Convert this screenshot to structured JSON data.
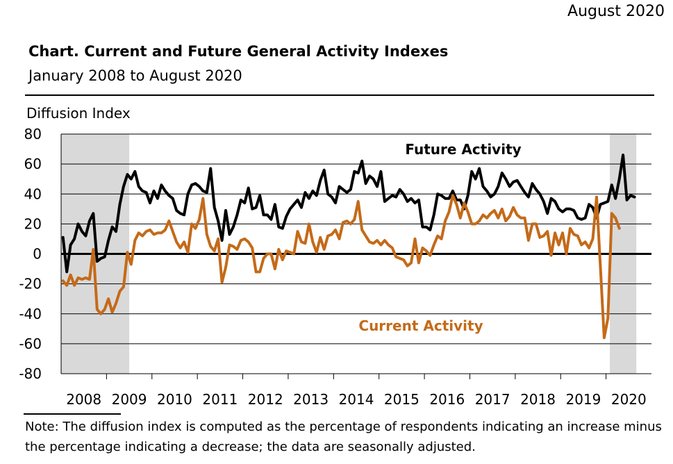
{
  "header": {
    "date": "August 2020",
    "title": "Chart. Current and Future General Activity Indexes",
    "subtitle": "January 2008 to August 2020"
  },
  "footer": {
    "note": "Note: The diffusion index is computed as the percentage of respondents indicating an increase minus the percentage indicating a decrease; the data are seasonally adjusted."
  },
  "chart_data": {
    "type": "line",
    "title": "Chart. Current and Future General Activity Indexes",
    "subtitle": "January 2008 to August 2020",
    "ylabel": "Diffusion Index",
    "ylim": [
      -80,
      80
    ],
    "yticks": [
      80,
      60,
      40,
      20,
      0,
      -20,
      -40,
      -60,
      -80
    ],
    "year_labels": [
      "2008",
      "2009",
      "2010",
      "2011",
      "2012",
      "2013",
      "2014",
      "2015",
      "2016",
      "2017",
      "2018",
      "2019",
      "2020"
    ],
    "x_start": "2008-01",
    "grid": true,
    "shaded_periods": [
      {
        "start": "2008-01",
        "end": "2009-06"
      },
      {
        "start": "2020-02",
        "end": "2020-08"
      }
    ],
    "series": [
      {
        "name": "Future Activity",
        "color": "#000000",
        "label_text": "Future Activity",
        "values": [
          11,
          -12,
          6,
          10,
          20,
          15,
          12,
          22,
          27,
          -5,
          -3,
          -2,
          9,
          18,
          15,
          33,
          45,
          53,
          50,
          55,
          45,
          42,
          41,
          34,
          42,
          37,
          46,
          42,
          39,
          37,
          29,
          27,
          26,
          40,
          46,
          47,
          45,
          42,
          41,
          57,
          31,
          22,
          9,
          29,
          13,
          18,
          26,
          36,
          34,
          44,
          30,
          31,
          39,
          26,
          26,
          23,
          33,
          18,
          17,
          25,
          30,
          33,
          36,
          31,
          41,
          37,
          42,
          39,
          49,
          56,
          40,
          38,
          34,
          45,
          43,
          41,
          43,
          55,
          54,
          62,
          47,
          52,
          50,
          45,
          55,
          35,
          37,
          39,
          38,
          43,
          40,
          35,
          37,
          34,
          36,
          18,
          18,
          16,
          26,
          40,
          39,
          37,
          37,
          42,
          36,
          36,
          30,
          39,
          55,
          50,
          57,
          45,
          42,
          38,
          40,
          45,
          54,
          50,
          45,
          48,
          49,
          45,
          41,
          38,
          47,
          43,
          40,
          35,
          27,
          37,
          35,
          30,
          28,
          30,
          30,
          29,
          24,
          23,
          24,
          33,
          31,
          24,
          33,
          34,
          35,
          46,
          37,
          50,
          66,
          36,
          39,
          38
        ]
      },
      {
        "name": "Current Activity",
        "color": "#C46A19",
        "label_text": "Current Activity",
        "values": [
          -18,
          -21,
          -14,
          -21,
          -16,
          -17,
          -16,
          -17,
          3,
          -37,
          -40,
          -37,
          -30,
          -39,
          -33,
          -25,
          -22,
          1,
          -7,
          9,
          14,
          12,
          15,
          16,
          13,
          14,
          14,
          16,
          22,
          15,
          8,
          4,
          8,
          1,
          20,
          17,
          23,
          37,
          13,
          5,
          2,
          10,
          -19,
          -9,
          6,
          5,
          3,
          9,
          10,
          8,
          4,
          -12,
          -12,
          -3,
          0,
          0,
          -10,
          3,
          -4,
          2,
          1,
          0,
          15,
          8,
          7,
          20,
          8,
          1,
          11,
          3,
          12,
          13,
          16,
          10,
          21,
          22,
          20,
          23,
          35,
          16,
          12,
          8,
          7,
          9,
          6,
          9,
          6,
          4,
          -2,
          -3,
          -4,
          -8,
          -6,
          10,
          -6,
          4,
          2,
          -1,
          6,
          12,
          10,
          22,
          28,
          39,
          33,
          24,
          34,
          28,
          20,
          20,
          22,
          26,
          24,
          27,
          29,
          24,
          30,
          22,
          25,
          31,
          26,
          24,
          24,
          9,
          20,
          20,
          11,
          12,
          15,
          -1,
          14,
          6,
          14,
          0,
          17,
          13,
          12,
          6,
          8,
          4,
          10,
          38,
          -8,
          -56,
          -43,
          27,
          24,
          17
        ]
      }
    ]
  }
}
